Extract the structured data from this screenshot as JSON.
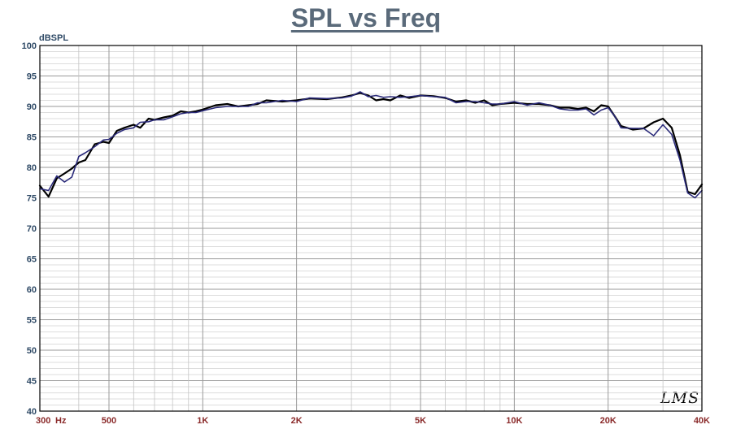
{
  "chart_data": {
    "type": "line",
    "title": "SPL vs Freq",
    "ylabel": "dBSPL",
    "xlabel": "",
    "xscale": "log",
    "xlim": [
      300,
      40000
    ],
    "ylim": [
      40,
      100
    ],
    "grid": true,
    "y_ticks": [
      40,
      45,
      50,
      55,
      60,
      65,
      70,
      75,
      80,
      85,
      90,
      95,
      100
    ],
    "x_tick_labels": [
      {
        "value": 300,
        "label": "300"
      },
      {
        "value": 500,
        "label": "500"
      },
      {
        "value": 1000,
        "label": "1K"
      },
      {
        "value": 2000,
        "label": "2K"
      },
      {
        "value": 5000,
        "label": "5K"
      },
      {
        "value": 10000,
        "label": "10K"
      },
      {
        "value": 20000,
        "label": "20K"
      },
      {
        "value": 40000,
        "label": "40K"
      }
    ],
    "x_unit_label": "Hz",
    "series": [
      {
        "color": "#000000",
        "x": [
          300,
          320,
          340,
          360,
          380,
          400,
          420,
          450,
          480,
          500,
          530,
          560,
          600,
          630,
          670,
          700,
          750,
          800,
          850,
          900,
          950,
          1000,
          1100,
          1200,
          1300,
          1400,
          1500,
          1600,
          1800,
          2000,
          2200,
          2500,
          2800,
          3000,
          3200,
          3400,
          3600,
          3800,
          4000,
          4300,
          4600,
          5000,
          5500,
          6000,
          6500,
          7000,
          7500,
          8000,
          8500,
          9000,
          10000,
          11000,
          12000,
          13000,
          14000,
          15000,
          16000,
          17000,
          18000,
          19000,
          20000,
          21000,
          22000,
          24000,
          26000,
          28000,
          30000,
          32000,
          34000,
          36000,
          38000,
          40000
        ],
        "y": [
          77,
          75.2,
          78.2,
          79,
          79.8,
          80.8,
          81.2,
          83.8,
          84.2,
          84,
          86,
          86.5,
          87,
          86.5,
          88,
          87.8,
          88.2,
          88.5,
          89.2,
          89,
          89.2,
          89.5,
          90.2,
          90.4,
          90,
          90.2,
          90.4,
          91,
          90.8,
          91,
          91.3,
          91.2,
          91.5,
          91.8,
          92.2,
          91.8,
          91,
          91.2,
          91,
          91.8,
          91.4,
          91.8,
          91.7,
          91.4,
          90.8,
          91,
          90.6,
          91,
          90.2,
          90.4,
          90.6,
          90.4,
          90.4,
          90.2,
          89.8,
          89.8,
          89.6,
          89.8,
          89.2,
          90.2,
          90,
          88.4,
          86.8,
          86.2,
          86.4,
          87.4,
          88,
          86.5,
          82,
          76,
          75.6,
          77.2
        ]
      },
      {
        "color": "#2a2a7a",
        "x": [
          300,
          320,
          340,
          360,
          380,
          400,
          420,
          450,
          480,
          500,
          530,
          560,
          600,
          630,
          670,
          700,
          750,
          800,
          850,
          900,
          950,
          1000,
          1100,
          1200,
          1300,
          1400,
          1500,
          1600,
          1800,
          2000,
          2200,
          2500,
          2800,
          3000,
          3200,
          3400,
          3600,
          3800,
          4000,
          4300,
          4600,
          5000,
          5500,
          6000,
          6500,
          7000,
          7500,
          8000,
          8500,
          9000,
          10000,
          11000,
          12000,
          13000,
          14000,
          15000,
          16000,
          17000,
          18000,
          19000,
          20000,
          21000,
          22000,
          24000,
          26000,
          28000,
          30000,
          32000,
          34000,
          36000,
          38000,
          40000
        ],
        "y": [
          76.5,
          76.2,
          78.6,
          77.6,
          78.4,
          81.8,
          82.4,
          83.4,
          84.5,
          84.6,
          85.6,
          86.2,
          86.5,
          87.4,
          87.5,
          87.8,
          87.8,
          88.3,
          88.8,
          89,
          89,
          89.3,
          89.8,
          90,
          90,
          90,
          90.6,
          90.6,
          91,
          90.8,
          91.4,
          91.3,
          91.4,
          91.7,
          92.4,
          91.6,
          91.8,
          91.5,
          91.6,
          91.5,
          91.6,
          91.8,
          91.6,
          91.5,
          90.6,
          90.8,
          90.8,
          90.6,
          90.4,
          90.4,
          90.8,
          90.2,
          90.6,
          90.2,
          89.6,
          89.4,
          89.4,
          89.6,
          88.6,
          89.4,
          89.8,
          88.4,
          86.5,
          86.4,
          86.4,
          85.2,
          87,
          85.4,
          81.2,
          75.8,
          75,
          76.2
        ]
      }
    ]
  },
  "watermark": "LMS"
}
